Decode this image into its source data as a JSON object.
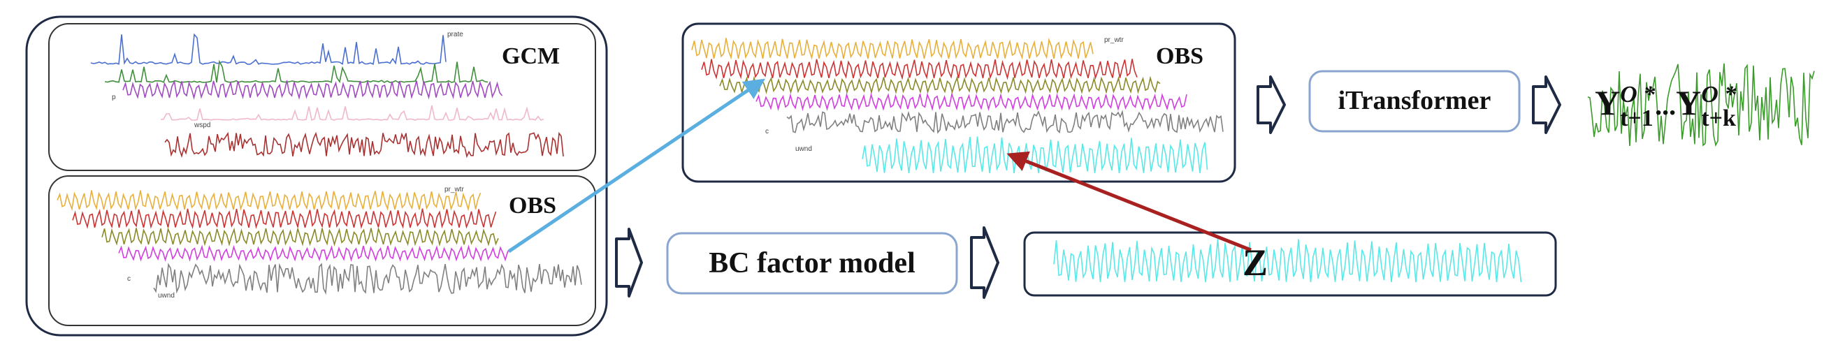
{
  "left_panel": {
    "gcm": {
      "title": "GCM",
      "legend_labels": [
        "prate",
        "p",
        "wspd"
      ],
      "series_colors": [
        "#4a6fd0",
        "#3f8f3a",
        "#a04cc0",
        "#f0b8c8",
        "#a83232"
      ]
    },
    "obs": {
      "title": "OBS",
      "legend_labels": [
        "pr_wtr",
        "c",
        "uwnd"
      ],
      "series_colors": [
        "#e8b03a",
        "#cc3333",
        "#8a8a2a",
        "#d23ee0",
        "#808080"
      ]
    }
  },
  "top_obs": {
    "title": "OBS",
    "legend_labels": [
      "pr_wtr",
      "c",
      "uwnd"
    ],
    "series_colors": [
      "#e8b03a",
      "#cc3333",
      "#8a8a2a",
      "#d23ee0",
      "#808080",
      "#59e8e8"
    ]
  },
  "bc_factor_model": {
    "label": "BC factor model"
  },
  "itransformer": {
    "label": "iTransformer"
  },
  "z_box": {
    "label": "Z",
    "series_color": "#59e8e8"
  },
  "output": {
    "y1_base": "Y",
    "y1_sup": "O *",
    "y1_sub": "t+1",
    "ellipsis": "...",
    "yk_base": "Y",
    "yk_sup": "O *",
    "yk_sub": "t+k",
    "series_color": "#3a9a2a"
  },
  "colors": {
    "box_border": "#1f2a44",
    "box_border_blue": "#8aa6d0",
    "arrow_blue": "#5aaee0",
    "arrow_red": "#a82020"
  }
}
